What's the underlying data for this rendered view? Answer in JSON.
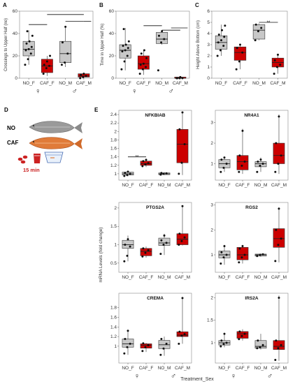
{
  "figure": {
    "panel_d_label": "D",
    "panel_e_label": "E",
    "legend_no": "NO",
    "legend_caf": "CAF",
    "legend_time": "15 min",
    "shared_ylabel": "mRNA Levels (fold change)",
    "shared_xlabel": "Treatment_Sex",
    "female_symbol": "♀",
    "male_symbol": "♂",
    "sig": "**",
    "fish_no_color": "#9a9a9a",
    "fish_caf_color": "#e07b39",
    "cup_color": "#cc2222"
  },
  "chart_data": [
    {
      "id": "A",
      "panel_label": "A",
      "type": "box",
      "ylabel": "Crossings to Upper Half (no)",
      "ylim": [
        0,
        60
      ],
      "yticks": [
        0,
        20,
        40,
        60
      ],
      "categories": [
        "NO_F",
        "CAF_F",
        "NO_M",
        "CAF_M"
      ],
      "boxes": [
        {
          "q1": 20,
          "median": 26,
          "q3": 33,
          "whisker_low": 12,
          "whisker_high": 43,
          "fill": "#c8c8c8",
          "points": [
            12,
            17,
            22,
            25,
            26,
            28,
            31,
            33,
            38,
            42
          ]
        },
        {
          "q1": 5,
          "median": 11,
          "q3": 17,
          "whisker_low": 2,
          "whisker_high": 20,
          "fill": "#cc0000",
          "points": [
            4,
            9,
            11,
            12,
            15,
            20
          ]
        },
        {
          "q1": 14,
          "median": 22,
          "q3": 33,
          "whisker_low": 10,
          "whisker_high": 46,
          "fill": "#c8c8c8",
          "points": [
            12,
            14,
            22,
            32,
            46
          ]
        },
        {
          "q1": 1,
          "median": 2,
          "q3": 4,
          "whisker_low": 0,
          "whisker_high": 5,
          "fill": "#cc0000",
          "points": [
            0,
            1,
            2,
            3,
            4
          ]
        }
      ],
      "sig_lines": [
        {
          "from": 0,
          "to": 1,
          "y": 48
        },
        {
          "from": 1,
          "to": 3,
          "y": 57
        },
        {
          "from": 2,
          "to": 3,
          "y": 51
        },
        {
          "from": 3,
          "to": 3.4,
          "y": 51
        }
      ]
    },
    {
      "id": "B",
      "panel_label": "B",
      "type": "box",
      "ylabel": "Time in Upper Half (%)",
      "ylim": [
        0,
        60
      ],
      "yticks": [
        0,
        20,
        40,
        60
      ],
      "categories": [
        "NO_F",
        "CAF_F",
        "NO_M",
        "CAF_M"
      ],
      "boxes": [
        {
          "q1": 18,
          "median": 25,
          "q3": 30,
          "whisker_low": 7,
          "whisker_high": 45,
          "fill": "#c8c8c8",
          "points": [
            8,
            15,
            20,
            24,
            25,
            27,
            29,
            30,
            33,
            44
          ]
        },
        {
          "q1": 8,
          "median": 13,
          "q3": 20,
          "whisker_low": 3,
          "whisker_high": 25,
          "fill": "#cc0000",
          "points": [
            4,
            8,
            10,
            12,
            13,
            18,
            22,
            25
          ]
        },
        {
          "q1": 31,
          "median": 35,
          "q3": 41,
          "whisker_low": 30,
          "whisker_high": 43,
          "fill": "#c8c8c8",
          "points": [
            7,
            32,
            35,
            38,
            42
          ]
        },
        {
          "q1": 0,
          "median": 0,
          "q3": 1,
          "whisker_low": 0,
          "whisker_high": 1,
          "fill": "#cc0000",
          "points": [
            0,
            0,
            0,
            0,
            1
          ]
        }
      ],
      "sig_lines": [
        {
          "from": 1,
          "to": 2,
          "y": 47
        },
        {
          "from": 2,
          "to": 3,
          "y": 43
        },
        {
          "from": 2.5,
          "to": 3.4,
          "y": 45
        }
      ]
    },
    {
      "id": "C",
      "panel_label": "C",
      "type": "box",
      "ylabel": "Height Above Bottom (cm)",
      "ylim": [
        0,
        6
      ],
      "yticks": [
        0,
        1,
        2,
        3,
        4,
        5,
        6
      ],
      "categories": [
        "NO_F",
        "CAF_F",
        "NO_M",
        "CAF_M"
      ],
      "boxes": [
        {
          "q1": 2.6,
          "median": 3.2,
          "q3": 3.8,
          "whisker_low": 2.0,
          "whisker_high": 4.8,
          "fill": "#c8c8c8",
          "points": [
            2.0,
            2.5,
            2.9,
            3.2,
            3.4,
            3.7,
            3.9,
            4.3,
            4.7
          ]
        },
        {
          "q1": 1.6,
          "median": 2.3,
          "q3": 2.8,
          "whisker_low": 0.8,
          "whisker_high": 3.0,
          "fill": "#cc0000",
          "points": [
            0.8,
            1.5,
            2.3,
            2.7,
            3.0
          ]
        },
        {
          "q1": 3.5,
          "median": 4.3,
          "q3": 4.8,
          "whisker_low": 3.4,
          "whisker_high": 4.9,
          "fill": "#c8c8c8",
          "points": [
            3.4,
            4.2,
            4.5,
            4.8
          ]
        },
        {
          "q1": 1.0,
          "median": 1.4,
          "q3": 1.8,
          "whisker_low": 0.4,
          "whisker_high": 2.1,
          "fill": "#cc0000",
          "points": [
            0.4,
            1.0,
            1.2,
            1.6,
            2.1
          ]
        }
      ],
      "sig_lines": [
        {
          "from": 2,
          "to": 3,
          "y": 5.0
        }
      ],
      "sig_label": {
        "x": 2.5,
        "y": 5.0
      }
    },
    {
      "id": "NFKBIAB",
      "title": "NFKBIAB",
      "type": "box",
      "ylim": [
        0.85,
        2.5
      ],
      "yticks": [
        1.0,
        1.2,
        1.4,
        1.6,
        1.8,
        2.0,
        2.2,
        2.4
      ],
      "categories": [
        "NO_F",
        "CAF_F",
        "NO_M",
        "CAF_M"
      ],
      "boxes": [
        {
          "q1": 0.97,
          "median": 1.0,
          "q3": 1.04,
          "whisker_low": 0.94,
          "whisker_high": 1.06,
          "fill": "#c8c8c8",
          "points": [
            0.95,
            0.97,
            1.0,
            1.02,
            1.05
          ]
        },
        {
          "q1": 1.2,
          "median": 1.24,
          "q3": 1.3,
          "whisker_low": 1.16,
          "whisker_high": 1.33,
          "fill": "#cc0000",
          "points": [
            1.18,
            1.22,
            1.25,
            1.3,
            1.33
          ]
        },
        {
          "q1": 0.98,
          "median": 1.0,
          "q3": 1.02,
          "whisker_low": 0.97,
          "whisker_high": 1.04,
          "fill": "#c8c8c8",
          "points": [
            0.98,
            1.0,
            1.01,
            1.02
          ]
        },
        {
          "q1": 1.26,
          "median": 1.7,
          "q3": 2.05,
          "whisker_low": 0.97,
          "whisker_high": 2.45,
          "fill": "#cc0000",
          "points": [
            1.0,
            1.26,
            1.7,
            2.05,
            2.45
          ]
        }
      ],
      "sig_lines": [
        {
          "from": 0,
          "to": 1,
          "y": 1.4
        }
      ],
      "sig_label": {
        "x": 0.5,
        "y": 1.4
      }
    },
    {
      "id": "NR4A1",
      "title": "NR4A1",
      "type": "box",
      "ylim": [
        0.2,
        3.6
      ],
      "yticks": [
        1.0,
        2.0,
        3.0
      ],
      "categories": [
        "NO_F",
        "CAF_F",
        "NO_M",
        "CAF_M"
      ],
      "boxes": [
        {
          "q1": 0.8,
          "median": 1.0,
          "q3": 1.2,
          "whisker_low": 0.6,
          "whisker_high": 1.3,
          "fill": "#c8c8c8",
          "points": [
            0.6,
            0.8,
            1.0,
            1.2,
            1.3
          ]
        },
        {
          "q1": 0.7,
          "median": 1.1,
          "q3": 1.4,
          "whisker_low": 0.5,
          "whisker_high": 2.7,
          "fill": "#cc0000",
          "points": [
            0.6,
            0.9,
            1.1,
            1.4,
            2.6
          ]
        },
        {
          "q1": 0.85,
          "median": 1.0,
          "q3": 1.1,
          "whisker_low": 0.6,
          "whisker_high": 1.3,
          "fill": "#c8c8c8",
          "points": [
            0.6,
            0.9,
            1.0,
            1.1,
            1.2
          ]
        },
        {
          "q1": 1.0,
          "median": 1.4,
          "q3": 2.0,
          "whisker_low": 0.5,
          "whisker_high": 3.4,
          "fill": "#cc0000",
          "points": [
            0.6,
            1.0,
            1.4,
            2.0,
            3.3
          ]
        }
      ]
    },
    {
      "id": "PTGS2A",
      "title": "PTGS2A",
      "type": "box",
      "ylim": [
        0.25,
        2.15
      ],
      "yticks": [
        0.5,
        1.0,
        1.5,
        2.0
      ],
      "categories": [
        "NO_F",
        "CAF_F",
        "NO_M",
        "CAF_M"
      ],
      "boxes": [
        {
          "q1": 0.9,
          "median": 1.0,
          "q3": 1.12,
          "whisker_low": 0.55,
          "whisker_high": 1.25,
          "fill": "#c8c8c8",
          "points": [
            0.55,
            0.7,
            0.95,
            1.0,
            1.15
          ]
        },
        {
          "q1": 0.7,
          "median": 0.82,
          "q3": 0.9,
          "whisker_low": 0.65,
          "whisker_high": 0.95,
          "fill": "#cc0000",
          "points": [
            0.68,
            0.78,
            0.85,
            0.9
          ]
        },
        {
          "q1": 0.98,
          "median": 1.05,
          "q3": 1.18,
          "whisker_low": 0.72,
          "whisker_high": 1.3,
          "fill": "#c8c8c8",
          "points": [
            0.75,
            1.0,
            1.05,
            1.12,
            1.25
          ]
        },
        {
          "q1": 1.0,
          "median": 1.15,
          "q3": 1.3,
          "whisker_low": 0.98,
          "whisker_high": 2.05,
          "fill": "#cc0000",
          "points": [
            1.0,
            1.1,
            1.2,
            1.3,
            2.05
          ]
        }
      ]
    },
    {
      "id": "RGS2",
      "title": "RGS2",
      "type": "box",
      "ylim": [
        0.3,
        3.1
      ],
      "yticks": [
        1.0,
        2.0,
        3.0
      ],
      "categories": [
        "NO_F",
        "CAF_F",
        "NO_M",
        "CAF_M"
      ],
      "boxes": [
        {
          "q1": 0.88,
          "median": 1.0,
          "q3": 1.15,
          "whisker_low": 0.6,
          "whisker_high": 1.4,
          "fill": "#c8c8c8",
          "points": [
            0.65,
            0.9,
            1.0,
            1.1,
            1.35
          ]
        },
        {
          "q1": 0.8,
          "median": 1.0,
          "q3": 1.3,
          "whisker_low": 0.65,
          "whisker_high": 1.4,
          "fill": "#cc0000",
          "points": [
            0.7,
            0.9,
            1.0,
            1.25,
            1.35
          ]
        },
        {
          "q1": 0.95,
          "median": 1.0,
          "q3": 1.03,
          "whisker_low": 0.92,
          "whisker_high": 1.05,
          "fill": "#c8c8c8",
          "points": [
            0.95,
            1.0,
            1.02
          ]
        },
        {
          "q1": 1.3,
          "median": 1.65,
          "q3": 2.05,
          "whisker_low": 0.7,
          "whisker_high": 2.9,
          "fill": "#cc0000",
          "points": [
            0.75,
            1.4,
            1.65,
            2.0,
            2.85
          ]
        }
      ]
    },
    {
      "id": "CREMA",
      "title": "CREMA",
      "type": "box",
      "ylim": [
        0.65,
        2.1
      ],
      "yticks": [
        1.0,
        1.2,
        1.4,
        1.6,
        1.8
      ],
      "categories": [
        "NO_F",
        "CAF_F",
        "NO_M",
        "CAF_M"
      ],
      "boxes": [
        {
          "q1": 0.98,
          "median": 1.05,
          "q3": 1.15,
          "whisker_low": 0.82,
          "whisker_high": 1.33,
          "fill": "#c8c8c8",
          "points": [
            0.85,
            0.98,
            1.05,
            1.15,
            1.32
          ]
        },
        {
          "q1": 0.96,
          "median": 1.02,
          "q3": 1.05,
          "whisker_low": 0.88,
          "whisker_high": 1.07,
          "fill": "#cc0000",
          "points": [
            0.9,
            0.98,
            1.02,
            1.06
          ]
        },
        {
          "q1": 0.95,
          "median": 1.03,
          "q3": 1.12,
          "whisker_low": 0.8,
          "whisker_high": 1.2,
          "fill": "#c8c8c8",
          "points": [
            0.82,
            0.95,
            1.05,
            1.15
          ]
        },
        {
          "q1": 1.2,
          "median": 1.23,
          "q3": 1.3,
          "whisker_low": 1.05,
          "whisker_high": 2.0,
          "fill": "#cc0000",
          "points": [
            1.05,
            1.22,
            1.25,
            1.3,
            2.0
          ]
        }
      ]
    },
    {
      "id": "IRS2A",
      "title": "IRS2A",
      "type": "box",
      "ylim": [
        0.55,
        2.1
      ],
      "yticks": [
        1.0,
        1.5,
        2.0
      ],
      "categories": [
        "NO_F",
        "CAF_F",
        "NO_M",
        "CAF_M"
      ],
      "boxes": [
        {
          "q1": 0.95,
          "median": 1.0,
          "q3": 1.05,
          "whisker_low": 0.9,
          "whisker_high": 1.22,
          "fill": "#c8c8c8",
          "points": [
            0.92,
            0.97,
            1.0,
            1.05,
            1.2
          ]
        },
        {
          "q1": 1.1,
          "median": 1.2,
          "q3": 1.25,
          "whisker_low": 1.05,
          "whisker_high": 1.3,
          "fill": "#cc0000",
          "points": [
            1.08,
            1.15,
            1.2,
            1.25
          ]
        },
        {
          "q1": 0.88,
          "median": 0.92,
          "q3": 1.05,
          "whisker_low": 0.85,
          "whisker_high": 1.2,
          "fill": "#c8c8c8",
          "points": [
            0.88,
            0.9,
            0.95,
            1.05
          ]
        },
        {
          "q1": 0.85,
          "median": 0.92,
          "q3": 1.05,
          "whisker_low": 0.6,
          "whisker_high": 2.05,
          "fill": "#cc0000",
          "points": [
            0.62,
            0.88,
            0.95,
            1.05,
            2.0
          ]
        }
      ]
    }
  ]
}
